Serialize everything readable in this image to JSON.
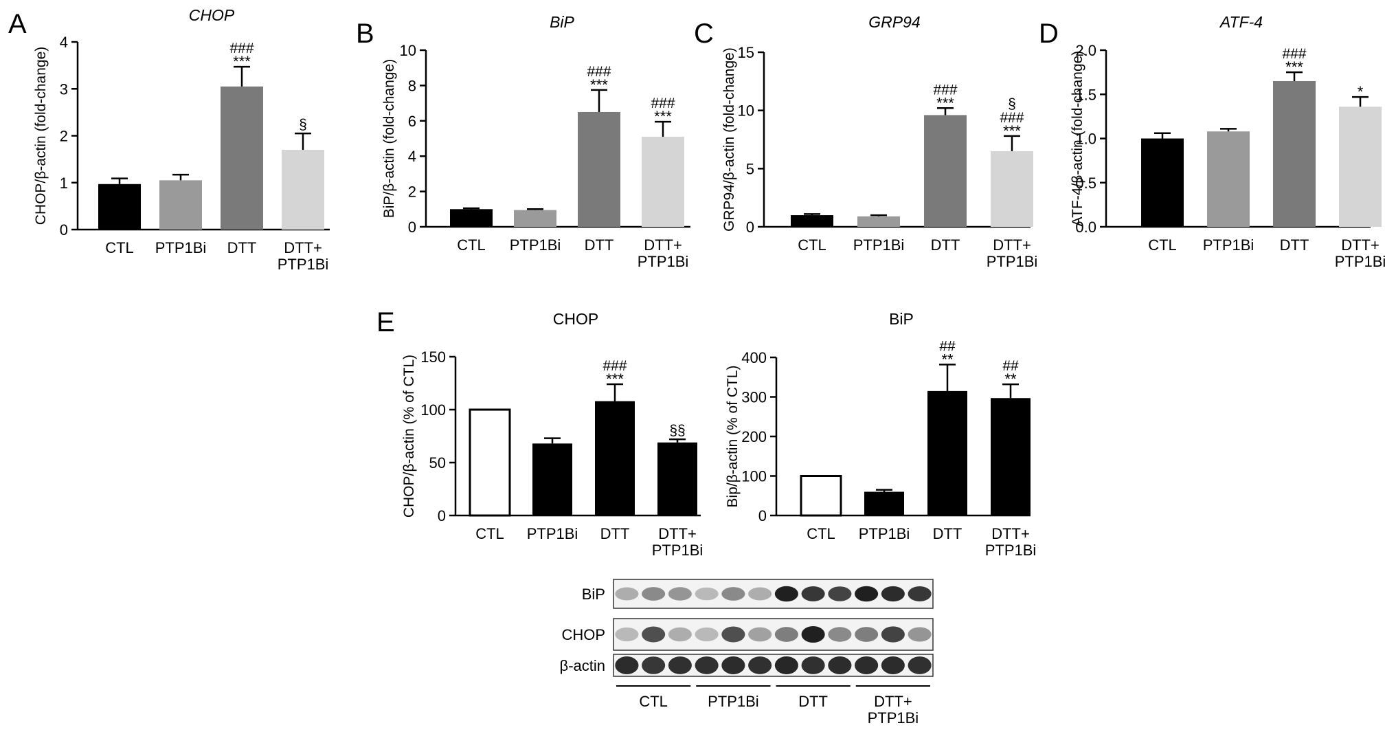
{
  "chart_data": [
    {
      "panel": "A",
      "type": "bar",
      "title": "CHOP",
      "title_italic": true,
      "xlabel": "",
      "ylabel": "CHOP/β-actin (fold-change)",
      "categories": [
        "CTL",
        "PTP1Bi",
        "DTT",
        "DTT+\nPTP1Bi"
      ],
      "values": [
        0.97,
        1.05,
        3.05,
        1.7
      ],
      "errors": [
        0.12,
        0.12,
        0.42,
        0.35
      ],
      "bar_colors": [
        "#000000",
        "#9a9a9a",
        "#7a7a7a",
        "#d5d5d5"
      ],
      "annotations": [
        "",
        "",
        "###\n***",
        "§"
      ],
      "ylim": [
        0,
        4
      ],
      "yticks": [
        0,
        1,
        2,
        3,
        4
      ],
      "ytick_labels": [
        "0",
        "1",
        "2",
        "3",
        "4"
      ]
    },
    {
      "panel": "B",
      "type": "bar",
      "title": "BiP",
      "title_italic": true,
      "xlabel": "",
      "ylabel": "BiP/β-actin (fold-change)",
      "categories": [
        "CTL",
        "PTP1Bi",
        "DTT",
        "DTT+\nPTP1Bi"
      ],
      "values": [
        1.0,
        0.95,
        6.5,
        5.1
      ],
      "errors": [
        0.05,
        0.05,
        1.25,
        0.85
      ],
      "bar_colors": [
        "#000000",
        "#9a9a9a",
        "#7a7a7a",
        "#d5d5d5"
      ],
      "annotations": [
        "",
        "",
        "###\n***",
        "###\n***"
      ],
      "ylim": [
        0,
        10
      ],
      "yticks": [
        0,
        2,
        4,
        6,
        8,
        10
      ],
      "ytick_labels": [
        "0",
        "2",
        "4",
        "6",
        "8",
        "10"
      ]
    },
    {
      "panel": "C",
      "type": "bar",
      "title": "GRP94",
      "title_italic": true,
      "xlabel": "",
      "ylabel": "GRP94/β-actin (fold-change)",
      "categories": [
        "CTL",
        "PTP1Bi",
        "DTT",
        "DTT+\nPTP1Bi"
      ],
      "values": [
        1.0,
        0.9,
        9.6,
        6.5
      ],
      "errors": [
        0.1,
        0.1,
        0.6,
        1.3
      ],
      "bar_colors": [
        "#000000",
        "#9a9a9a",
        "#7a7a7a",
        "#d5d5d5"
      ],
      "annotations": [
        "",
        "",
        "###\n***",
        "§\n###\n***"
      ],
      "ylim": [
        0,
        15
      ],
      "yticks": [
        0,
        5,
        10,
        15
      ],
      "ytick_labels": [
        "0",
        "5",
        "10",
        "15"
      ]
    },
    {
      "panel": "D",
      "type": "bar",
      "title": "ATF-4",
      "title_italic": true,
      "xlabel": "",
      "ylabel": "ATF-4/β-actin (fold-change)",
      "categories": [
        "CTL",
        "PTP1Bi",
        "DTT",
        "DTT+\nPTP1Bi"
      ],
      "values": [
        1.0,
        1.08,
        1.65,
        1.36
      ],
      "errors": [
        0.06,
        0.03,
        0.1,
        0.11
      ],
      "bar_colors": [
        "#000000",
        "#9a9a9a",
        "#7a7a7a",
        "#d5d5d5"
      ],
      "annotations": [
        "",
        "",
        "###\n***",
        "*"
      ],
      "ylim": [
        0,
        2.0
      ],
      "yticks": [
        0,
        0.5,
        1.0,
        1.5,
        2.0
      ],
      "ytick_labels": [
        "0.0",
        "0.5",
        "1.0",
        "1.5",
        "2.0"
      ]
    },
    {
      "panel": "E",
      "type": "bar",
      "title": "CHOP",
      "title_italic": false,
      "xlabel": "",
      "ylabel": "CHOP/β-actin (% of CTL)",
      "categories": [
        "CTL",
        "PTP1Bi",
        "DTT",
        "DTT+\nPTP1Bi"
      ],
      "values": [
        100,
        68,
        108,
        69
      ],
      "errors": [
        0,
        5,
        16,
        3
      ],
      "bar_colors": [
        "#ffffff",
        "#000000",
        "#000000",
        "#000000"
      ],
      "annotations": [
        "",
        "",
        "###\n***",
        "§§"
      ],
      "ylim": [
        0,
        150
      ],
      "yticks": [
        0,
        50,
        100,
        150
      ],
      "ytick_labels": [
        "0",
        "50",
        "100",
        "150"
      ]
    },
    {
      "panel": "E",
      "type": "bar",
      "title": "BiP",
      "title_italic": false,
      "xlabel": "",
      "ylabel": "Bip/β-actin (% of CTL)",
      "categories": [
        "CTL",
        "PTP1Bi",
        "DTT",
        "DTT+\nPTP1Bi"
      ],
      "values": [
        100,
        60,
        315,
        297
      ],
      "errors": [
        0,
        5,
        67,
        35
      ],
      "bar_colors": [
        "#ffffff",
        "#000000",
        "#000000",
        "#000000"
      ],
      "annotations": [
        "",
        "",
        "##\n**",
        "##\n**"
      ],
      "ylim": [
        0,
        400
      ],
      "yticks": [
        0,
        100,
        200,
        300,
        400
      ],
      "ytick_labels": [
        "0",
        "100",
        "200",
        "300",
        "400"
      ]
    }
  ],
  "panel_letters": [
    "A",
    "B",
    "C",
    "D",
    "E"
  ],
  "western_blot": {
    "rows": [
      {
        "label": "BiP",
        "intensities": [
          0.35,
          0.5,
          0.45,
          0.3,
          0.5,
          0.35,
          0.95,
          0.85,
          0.8,
          0.95,
          0.9,
          0.85
        ]
      },
      {
        "label": "CHOP",
        "intensities": [
          0.3,
          0.75,
          0.35,
          0.3,
          0.75,
          0.4,
          0.55,
          0.95,
          0.5,
          0.55,
          0.8,
          0.45
        ]
      },
      {
        "label": "β-actin",
        "intensities": [
          0.9,
          0.85,
          0.88,
          0.88,
          0.9,
          0.88,
          0.92,
          0.88,
          0.9,
          0.9,
          0.9,
          0.88
        ]
      }
    ],
    "groups": [
      "CTL",
      "PTP1Bi",
      "DTT",
      "DTT+\nPTP1Bi"
    ]
  }
}
